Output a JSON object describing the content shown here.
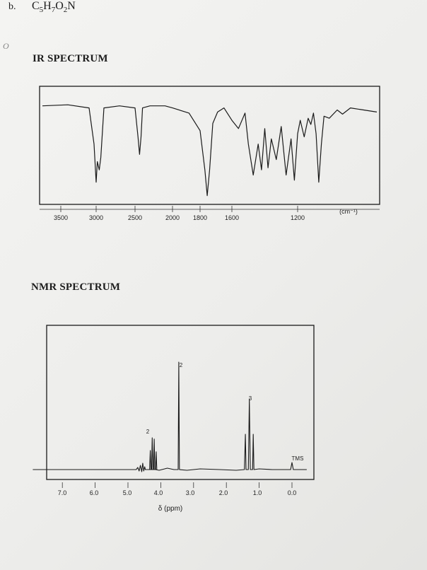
{
  "problem": {
    "label": "b.",
    "formula_main": "C",
    "formula_parts": [
      "5",
      "H",
      "7",
      "O",
      "2",
      "N"
    ]
  },
  "margin_mark": "O",
  "ir": {
    "title": "IR SPECTRUM",
    "unit_label": "(cm⁻¹)",
    "tick_labels": [
      "3500",
      "3000",
      "2500",
      "2000",
      "1800",
      "1600",
      "1200"
    ]
  },
  "nmr": {
    "title": "NMR SPECTRUM",
    "xlabel": "δ (ppm)",
    "tick_labels": [
      "7.0",
      "6.0",
      "5.0",
      "4.0",
      "3.0",
      "2.0",
      "1.0",
      "0.0"
    ],
    "tms_label": "TMS"
  },
  "chart_data": [
    {
      "type": "line",
      "title": "IR SPECTRUM",
      "xlabel": "(cm⁻¹)",
      "xlim": [
        3700,
        600
      ],
      "x_ticks": [
        3500,
        3000,
        2500,
        2000,
        1800,
        1600,
        1200
      ],
      "y_meaning": "transmittance (relative, 1 = baseline)",
      "series": [
        {
          "x": [
            3700,
            3400,
            3100,
            3030,
            3000,
            2985,
            2960,
            2940,
            2900,
            2700,
            2500,
            2460,
            2440,
            2420,
            2400,
            2300,
            2100,
            2000,
            1880,
            1800,
            1770,
            1755,
            1740,
            1720,
            1690,
            1650,
            1600,
            1560,
            1520,
            1500,
            1470,
            1440,
            1420,
            1400,
            1380,
            1360,
            1330,
            1300,
            1270,
            1240,
            1220,
            1200,
            1180,
            1150,
            1120,
            1100,
            1080,
            1060,
            1040,
            1020,
            1000,
            960,
            900,
            860,
            800,
            700,
            600
          ],
          "values": [
            0.92,
            0.93,
            0.9,
            0.55,
            0.18,
            0.38,
            0.3,
            0.42,
            0.9,
            0.92,
            0.9,
            0.62,
            0.45,
            0.62,
            0.9,
            0.92,
            0.92,
            0.9,
            0.85,
            0.68,
            0.3,
            0.05,
            0.3,
            0.75,
            0.86,
            0.9,
            0.78,
            0.7,
            0.85,
            0.55,
            0.25,
            0.55,
            0.3,
            0.7,
            0.32,
            0.6,
            0.4,
            0.72,
            0.25,
            0.6,
            0.2,
            0.65,
            0.78,
            0.62,
            0.8,
            0.74,
            0.85,
            0.65,
            0.18,
            0.55,
            0.82,
            0.8,
            0.88,
            0.84,
            0.9,
            0.88,
            0.86
          ]
        }
      ]
    },
    {
      "type": "line",
      "title": "NMR SPECTRUM",
      "xlabel": "δ (ppm)",
      "xlim": [
        8.0,
        -0.6
      ],
      "x_ticks": [
        7.0,
        6.0,
        5.0,
        4.0,
        3.0,
        2.0,
        1.0,
        0.0
      ],
      "peaks": [
        {
          "shift": 4.2,
          "pattern": "quartet",
          "integration_label": "2"
        },
        {
          "shift": 3.45,
          "pattern": "singlet",
          "integration_label": "2"
        },
        {
          "shift": 1.3,
          "pattern": "triplet",
          "integration_label": "3"
        },
        {
          "shift": 0.0,
          "pattern": "singlet",
          "label": "TMS"
        }
      ]
    }
  ]
}
